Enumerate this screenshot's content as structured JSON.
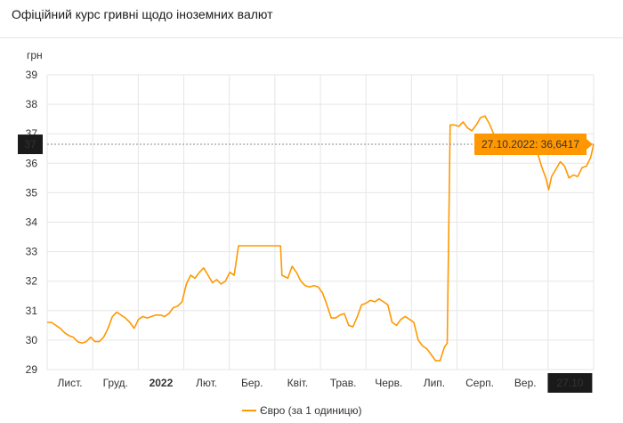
{
  "title": "Офіційний курс гривні щодо іноземних валют",
  "chart_data": {
    "type": "line",
    "ylabel": "грн",
    "ylim": [
      29,
      39
    ],
    "yticks": [
      29,
      30,
      31,
      32,
      33,
      34,
      35,
      36,
      37,
      38,
      39
    ],
    "xticks": [
      "Лист.",
      "Груд.",
      "2022",
      "Лют.",
      "Бер.",
      "Квіт.",
      "Трав.",
      "Черв.",
      "Лип.",
      "Серп.",
      "Вер.",
      "27.10"
    ],
    "x_range": [
      "2021-10-15",
      "2022-10-27"
    ],
    "grid": true,
    "legend": "bottom",
    "current_value_label": "37",
    "tooltip": "27.10.2022: 36,6417",
    "series": [
      {
        "name": "Євро (за 1 одиницю)",
        "color": "#ff9800",
        "points": [
          [
            "2021-10-15",
            30.6
          ],
          [
            "2021-10-18",
            30.6
          ],
          [
            "2021-10-21",
            30.5
          ],
          [
            "2021-10-24",
            30.4
          ],
          [
            "2021-10-27",
            30.25
          ],
          [
            "2021-10-30",
            30.15
          ],
          [
            "2021-11-02",
            30.1
          ],
          [
            "2021-11-05",
            29.95
          ],
          [
            "2021-11-08",
            29.9
          ],
          [
            "2021-11-11",
            29.95
          ],
          [
            "2021-11-14",
            30.1
          ],
          [
            "2021-11-17",
            29.95
          ],
          [
            "2021-11-20",
            29.95
          ],
          [
            "2021-11-23",
            30.1
          ],
          [
            "2021-11-26",
            30.4
          ],
          [
            "2021-11-29",
            30.8
          ],
          [
            "2021-12-02",
            30.95
          ],
          [
            "2021-12-05",
            30.85
          ],
          [
            "2021-12-08",
            30.75
          ],
          [
            "2021-12-11",
            30.6
          ],
          [
            "2021-12-14",
            30.4
          ],
          [
            "2021-12-17",
            30.7
          ],
          [
            "2021-12-20",
            30.8
          ],
          [
            "2021-12-23",
            30.75
          ],
          [
            "2021-12-26",
            30.8
          ],
          [
            "2021-12-29",
            30.85
          ],
          [
            "2022-01-01",
            30.85
          ],
          [
            "2022-01-04",
            30.8
          ],
          [
            "2022-01-07",
            30.9
          ],
          [
            "2022-01-10",
            31.1
          ],
          [
            "2022-01-13",
            31.15
          ],
          [
            "2022-01-16",
            31.3
          ],
          [
            "2022-01-19",
            31.9
          ],
          [
            "2022-01-22",
            32.2
          ],
          [
            "2022-01-25",
            32.1
          ],
          [
            "2022-01-28",
            32.3
          ],
          [
            "2022-01-31",
            32.45
          ],
          [
            "2022-02-03",
            32.2
          ],
          [
            "2022-02-06",
            31.95
          ],
          [
            "2022-02-09",
            32.05
          ],
          [
            "2022-02-12",
            31.9
          ],
          [
            "2022-02-15",
            32.0
          ],
          [
            "2022-02-18",
            32.3
          ],
          [
            "2022-02-21",
            32.2
          ],
          [
            "2022-02-24",
            33.2
          ],
          [
            "2022-03-01",
            33.2
          ],
          [
            "2022-03-10",
            33.2
          ],
          [
            "2022-03-20",
            33.2
          ],
          [
            "2022-03-25",
            33.2
          ],
          [
            "2022-03-26",
            32.2
          ],
          [
            "2022-03-30",
            32.1
          ],
          [
            "2022-04-02",
            32.5
          ],
          [
            "2022-04-05",
            32.3
          ],
          [
            "2022-04-08",
            32.0
          ],
          [
            "2022-04-11",
            31.85
          ],
          [
            "2022-04-14",
            31.8
          ],
          [
            "2022-04-17",
            31.85
          ],
          [
            "2022-04-20",
            31.8
          ],
          [
            "2022-04-23",
            31.6
          ],
          [
            "2022-04-26",
            31.2
          ],
          [
            "2022-04-29",
            30.75
          ],
          [
            "2022-05-02",
            30.75
          ],
          [
            "2022-05-05",
            30.85
          ],
          [
            "2022-05-08",
            30.9
          ],
          [
            "2022-05-11",
            30.5
          ],
          [
            "2022-05-14",
            30.45
          ],
          [
            "2022-05-17",
            30.8
          ],
          [
            "2022-05-20",
            31.2
          ],
          [
            "2022-05-23",
            31.25
          ],
          [
            "2022-05-26",
            31.35
          ],
          [
            "2022-05-29",
            31.3
          ],
          [
            "2022-06-01",
            31.4
          ],
          [
            "2022-06-04",
            31.3
          ],
          [
            "2022-06-07",
            31.2
          ],
          [
            "2022-06-10",
            30.6
          ],
          [
            "2022-06-13",
            30.5
          ],
          [
            "2022-06-16",
            30.7
          ],
          [
            "2022-06-19",
            30.8
          ],
          [
            "2022-06-22",
            30.7
          ],
          [
            "2022-06-25",
            30.6
          ],
          [
            "2022-06-28",
            30.0
          ],
          [
            "2022-07-01",
            29.8
          ],
          [
            "2022-07-04",
            29.7
          ],
          [
            "2022-07-07",
            29.5
          ],
          [
            "2022-07-10",
            29.3
          ],
          [
            "2022-07-13",
            29.3
          ],
          [
            "2022-07-16",
            29.75
          ],
          [
            "2022-07-18",
            29.9
          ],
          [
            "2022-07-20",
            37.3
          ],
          [
            "2022-07-23",
            37.3
          ],
          [
            "2022-07-26",
            37.25
          ],
          [
            "2022-07-29",
            37.4
          ],
          [
            "2022-08-01",
            37.2
          ],
          [
            "2022-08-04",
            37.1
          ],
          [
            "2022-08-07",
            37.3
          ],
          [
            "2022-08-10",
            37.55
          ],
          [
            "2022-08-13",
            37.6
          ],
          [
            "2022-08-16",
            37.35
          ],
          [
            "2022-08-19",
            37.0
          ],
          [
            "2022-08-22",
            36.8
          ],
          [
            "2022-08-25",
            36.7
          ],
          [
            "2022-08-28",
            36.6
          ],
          [
            "2022-08-31",
            36.7
          ],
          [
            "2022-09-03",
            36.5
          ],
          [
            "2022-09-06",
            36.4
          ],
          [
            "2022-09-09",
            36.7
          ],
          [
            "2022-09-12",
            36.8
          ],
          [
            "2022-09-15",
            36.7
          ],
          [
            "2022-09-18",
            36.4
          ],
          [
            "2022-09-21",
            35.9
          ],
          [
            "2022-09-24",
            35.5
          ],
          [
            "2022-09-26",
            35.1
          ],
          [
            "2022-09-28",
            35.55
          ],
          [
            "2022-10-01",
            35.8
          ],
          [
            "2022-10-04",
            36.05
          ],
          [
            "2022-10-07",
            35.9
          ],
          [
            "2022-10-10",
            35.5
          ],
          [
            "2022-10-13",
            35.6
          ],
          [
            "2022-10-16",
            35.55
          ],
          [
            "2022-10-19",
            35.85
          ],
          [
            "2022-10-22",
            35.9
          ],
          [
            "2022-10-25",
            36.2
          ],
          [
            "2022-10-27",
            36.6417
          ]
        ]
      }
    ]
  }
}
